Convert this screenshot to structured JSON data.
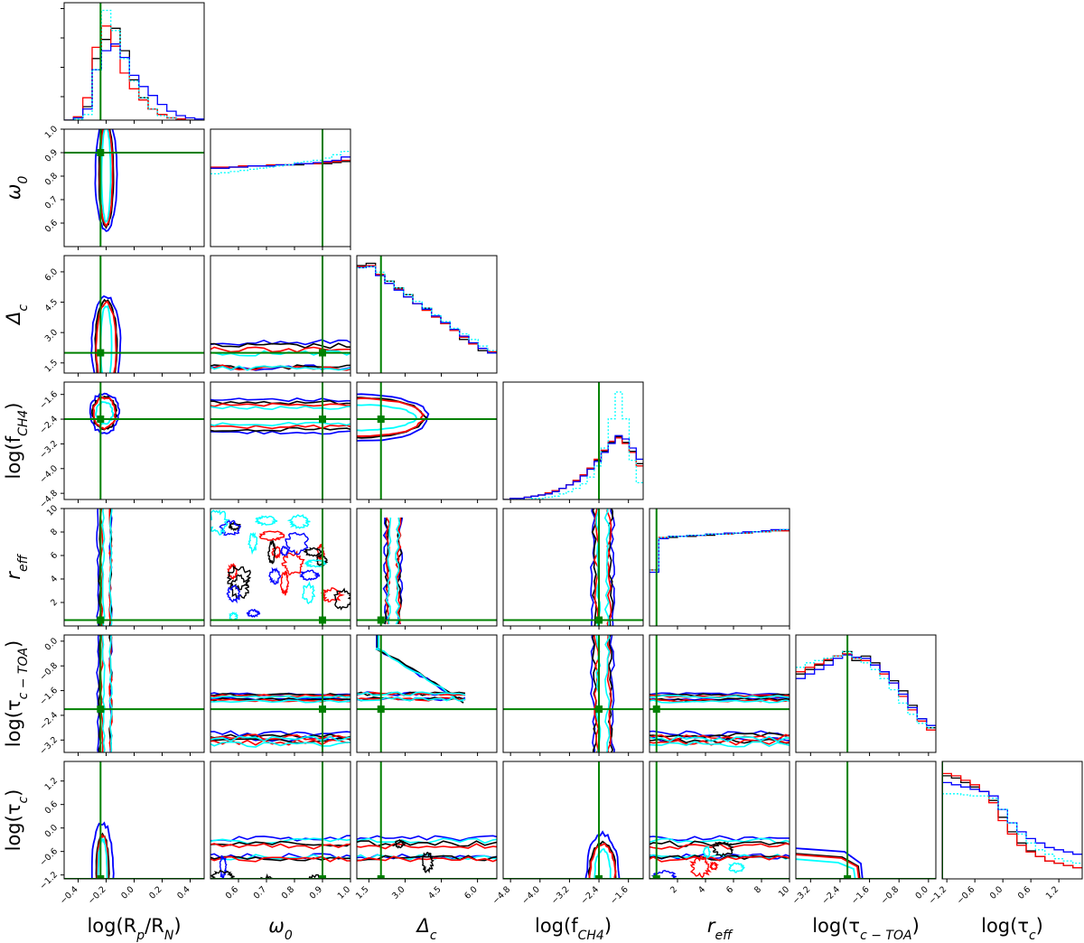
{
  "chart_data": {
    "type": "corner",
    "title": "",
    "parameters": [
      {
        "key": "logRpRN",
        "label": "log(R",
        "label_sub": "p",
        "label_mid": "/R",
        "label_sub2": "N",
        "label_end": ")",
        "range": [
          -0.5,
          0.5
        ],
        "ticks": [
          -0.4,
          -0.2,
          0.0,
          0.2,
          0.4
        ],
        "tick_labels": [
          "−0.4",
          "−0.2",
          "0.0",
          "0.2",
          "0.4"
        ],
        "truth": -0.24
      },
      {
        "key": "omega0",
        "label": "ω",
        "label_sub": "0",
        "range": [
          0.5,
          1.0
        ],
        "ticks": [
          0.6,
          0.7,
          0.8,
          0.9,
          1.0
        ],
        "tick_labels": [
          "0.6",
          "0.7",
          "0.8",
          "0.9",
          "1.0"
        ],
        "truth": 0.9
      },
      {
        "key": "delta_c",
        "label": "Δ",
        "label_sub": "c",
        "range": [
          1.0,
          6.8
        ],
        "ticks": [
          1.5,
          3.0,
          4.5,
          6.0
        ],
        "tick_labels": [
          "1.5",
          "3.0",
          "4.5",
          "6.0"
        ],
        "truth": 2.0
      },
      {
        "key": "logfCH4",
        "label": "log(f",
        "label_sub": "CH4",
        "label_end": ")",
        "range": [
          -5.0,
          -1.2
        ],
        "ticks": [
          -4.8,
          -4.0,
          -3.2,
          -2.4,
          -1.6
        ],
        "tick_labels": [
          "−4.8",
          "−4.0",
          "−3.2",
          "−2.4",
          "−1.6"
        ],
        "truth": -2.4
      },
      {
        "key": "r_eff",
        "label": "r",
        "label_sub": "eff",
        "range": [
          0,
          10
        ],
        "ticks": [
          2,
          4,
          6,
          8,
          10
        ],
        "tick_labels": [
          "2",
          "4",
          "6",
          "8",
          "10"
        ],
        "truth": 0.5
      },
      {
        "key": "logtauTOA",
        "label": "log(τ",
        "label_sub": "c − TOA",
        "label_end": ")",
        "range": [
          -3.6,
          0.2
        ],
        "ticks": [
          -3.2,
          -2.4,
          -1.6,
          -0.8,
          0.0
        ],
        "tick_labels": [
          "−3.2",
          "−2.4",
          "−1.6",
          "−0.8",
          "0.0"
        ],
        "truth": -2.2
      },
      {
        "key": "logtauc",
        "label": "log(τ",
        "label_sub": "c",
        "label_end": ")",
        "range": [
          -1.3,
          1.7
        ],
        "ticks": [
          -1.2,
          -0.6,
          0.0,
          0.6,
          1.2
        ],
        "tick_labels": [
          "−1.2",
          "−0.6",
          "0.0",
          "0.6",
          "1.2"
        ],
        "truth": -1.3
      }
    ],
    "series_colors": [
      "#000000",
      "#ff0000",
      "#0000ff",
      "#00ffff"
    ],
    "truth_color": "#008000",
    "histograms": {
      "logRpRN": [
        [
          0.0,
          0.02,
          0.12,
          0.55,
          0.72,
          0.82,
          0.62,
          0.36,
          0.2,
          0.1,
          0.05,
          0.02,
          0.01,
          0.0,
          0.0
        ],
        [
          0.0,
          0.03,
          0.2,
          0.65,
          0.84,
          0.66,
          0.42,
          0.28,
          0.18,
          0.1,
          0.05,
          0.02,
          0.01,
          0.0,
          0.0
        ],
        [
          0.0,
          0.02,
          0.1,
          0.45,
          0.62,
          0.68,
          0.56,
          0.4,
          0.3,
          0.22,
          0.14,
          0.08,
          0.04,
          0.02,
          0.01
        ],
        [
          0.0,
          0.01,
          0.05,
          0.45,
          0.98,
          0.8,
          0.55,
          0.35,
          0.2,
          0.1,
          0.04,
          0.02,
          0.0,
          0.0,
          0.0
        ]
      ],
      "omega0": [
        [
          0.7,
          0.7,
          0.71,
          0.71,
          0.72,
          0.72,
          0.72,
          0.73,
          0.73,
          0.73,
          0.74,
          0.74,
          0.74,
          0.75,
          0.76
        ],
        [
          0.71,
          0.71,
          0.71,
          0.72,
          0.72,
          0.72,
          0.73,
          0.73,
          0.73,
          0.74,
          0.74,
          0.74,
          0.75,
          0.76,
          0.77
        ],
        [
          0.7,
          0.7,
          0.71,
          0.71,
          0.72,
          0.72,
          0.72,
          0.73,
          0.73,
          0.74,
          0.74,
          0.75,
          0.76,
          0.77,
          0.8
        ],
        [
          0.65,
          0.66,
          0.67,
          0.68,
          0.69,
          0.7,
          0.71,
          0.72,
          0.73,
          0.75,
          0.76,
          0.77,
          0.79,
          0.82,
          0.85
        ]
      ],
      "delta_c": [
        [
          0.96,
          0.98,
          0.88,
          0.82,
          0.76,
          0.7,
          0.62,
          0.58,
          0.5,
          0.44,
          0.38,
          0.3,
          0.26,
          0.2,
          0.18
        ],
        [
          0.95,
          0.96,
          0.88,
          0.8,
          0.75,
          0.68,
          0.62,
          0.56,
          0.5,
          0.44,
          0.38,
          0.32,
          0.26,
          0.22,
          0.19
        ],
        [
          0.94,
          0.95,
          0.87,
          0.8,
          0.74,
          0.68,
          0.62,
          0.57,
          0.51,
          0.45,
          0.39,
          0.33,
          0.27,
          0.22,
          0.18
        ],
        [
          0.94,
          0.95,
          0.9,
          0.82,
          0.76,
          0.7,
          0.64,
          0.58,
          0.52,
          0.46,
          0.4,
          0.35,
          0.3,
          0.24,
          0.2
        ]
      ],
      "logfCH4": [
        [
          0.0,
          0.01,
          0.01,
          0.02,
          0.03,
          0.04,
          0.06,
          0.08,
          0.1,
          0.13,
          0.17,
          0.22,
          0.28,
          0.35,
          0.43,
          0.51,
          0.56,
          0.51,
          0.43,
          0.32
        ],
        [
          0.0,
          0.01,
          0.01,
          0.02,
          0.03,
          0.04,
          0.06,
          0.08,
          0.1,
          0.13,
          0.17,
          0.22,
          0.28,
          0.36,
          0.44,
          0.52,
          0.55,
          0.5,
          0.42,
          0.3
        ],
        [
          0.0,
          0.01,
          0.01,
          0.02,
          0.03,
          0.04,
          0.05,
          0.07,
          0.1,
          0.13,
          0.16,
          0.21,
          0.27,
          0.34,
          0.42,
          0.5,
          0.57,
          0.54,
          0.46,
          0.36
        ],
        [
          0.0,
          0.0,
          0.0,
          0.0,
          0.01,
          0.01,
          0.02,
          0.03,
          0.05,
          0.07,
          0.1,
          0.14,
          0.2,
          0.3,
          0.46,
          0.72,
          0.96,
          0.72,
          0.35,
          0.15
        ]
      ],
      "r_eff": [
        [
          0.5,
          0.78,
          0.79,
          0.8,
          0.8,
          0.81,
          0.81,
          0.82,
          0.82,
          0.83,
          0.83,
          0.84,
          0.84,
          0.85,
          0.85
        ],
        [
          0.5,
          0.79,
          0.8,
          0.8,
          0.81,
          0.81,
          0.82,
          0.82,
          0.82,
          0.83,
          0.83,
          0.84,
          0.84,
          0.85,
          0.85
        ],
        [
          0.48,
          0.78,
          0.8,
          0.8,
          0.81,
          0.81,
          0.82,
          0.82,
          0.83,
          0.83,
          0.84,
          0.84,
          0.85,
          0.86,
          0.86
        ],
        [
          0.5,
          0.79,
          0.8,
          0.8,
          0.81,
          0.81,
          0.82,
          0.82,
          0.82,
          0.83,
          0.83,
          0.84,
          0.84,
          0.85,
          0.86
        ]
      ],
      "logtauTOA": [
        [
          0.7,
          0.74,
          0.78,
          0.82,
          0.86,
          0.9,
          0.82,
          0.86,
          0.8,
          0.72,
          0.64,
          0.55,
          0.42,
          0.3,
          0.22
        ],
        [
          0.72,
          0.76,
          0.79,
          0.83,
          0.86,
          0.88,
          0.84,
          0.82,
          0.78,
          0.7,
          0.62,
          0.5,
          0.38,
          0.28,
          0.2
        ],
        [
          0.66,
          0.7,
          0.74,
          0.78,
          0.84,
          0.87,
          0.85,
          0.84,
          0.78,
          0.72,
          0.62,
          0.52,
          0.4,
          0.3,
          0.24
        ],
        [
          0.76,
          0.8,
          0.82,
          0.84,
          0.86,
          0.9,
          0.84,
          0.8,
          0.74,
          0.66,
          0.56,
          0.44,
          0.34,
          0.26,
          0.22
        ]
      ],
      "logtauc": [
        [
          0.92,
          0.9,
          0.86,
          0.82,
          0.78,
          0.7,
          0.55,
          0.42,
          0.32,
          0.25,
          0.2,
          0.16,
          0.14,
          0.12,
          0.1
        ],
        [
          0.94,
          0.92,
          0.88,
          0.84,
          0.78,
          0.68,
          0.52,
          0.4,
          0.3,
          0.24,
          0.2,
          0.16,
          0.14,
          0.12,
          0.1
        ],
        [
          0.86,
          0.84,
          0.82,
          0.8,
          0.78,
          0.74,
          0.62,
          0.5,
          0.42,
          0.36,
          0.32,
          0.28,
          0.26,
          0.24,
          0.22
        ],
        [
          0.76,
          0.76,
          0.75,
          0.74,
          0.74,
          0.72,
          0.62,
          0.5,
          0.4,
          0.32,
          0.26,
          0.22,
          0.18,
          0.16,
          0.14
        ]
      ]
    }
  }
}
